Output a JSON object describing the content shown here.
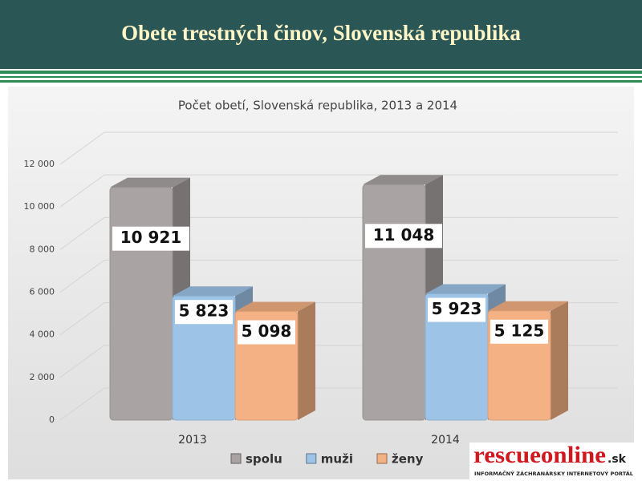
{
  "header": {
    "title": "Obete trestných činov, Slovenská republika"
  },
  "chart_data": {
    "type": "bar3d",
    "title": "Počet obetí, Slovenská republika, 2013 a 2014",
    "categories": [
      "2013",
      "2014"
    ],
    "series": [
      {
        "name": "spolu",
        "color": "#a9a3a3",
        "values": [
          10921,
          11048
        ],
        "value_labels": [
          "10 921",
          "11 048"
        ]
      },
      {
        "name": "muži",
        "color": "#9dc3e6",
        "values": [
          5823,
          5923
        ],
        "value_labels": [
          "5 823",
          "5 923"
        ]
      },
      {
        "name": "ženy",
        "color": "#f4b183",
        "values": [
          5098,
          5125
        ],
        "value_labels": [
          "5 098",
          "5 125"
        ]
      }
    ],
    "ylim": [
      0,
      12000
    ],
    "yticks": [
      0,
      {
        "value": 2000,
        "label": "2 000"
      },
      {
        "value": 4000,
        "label": "4 000"
      },
      {
        "value": 6000,
        "label": "6 000"
      },
      {
        "value": 8000,
        "label": "8 000"
      },
      {
        "value": 10000,
        "label": "10 000"
      },
      {
        "value": 12000,
        "label": "12 000"
      }
    ],
    "grid": true,
    "legend": "bottom"
  },
  "logo": {
    "name": "rescueonline",
    "domain": ".sk",
    "tagline": "INFORMAČNÝ ZÁCHRANÁRSKY INTERNETOVÝ PORTÁL"
  }
}
